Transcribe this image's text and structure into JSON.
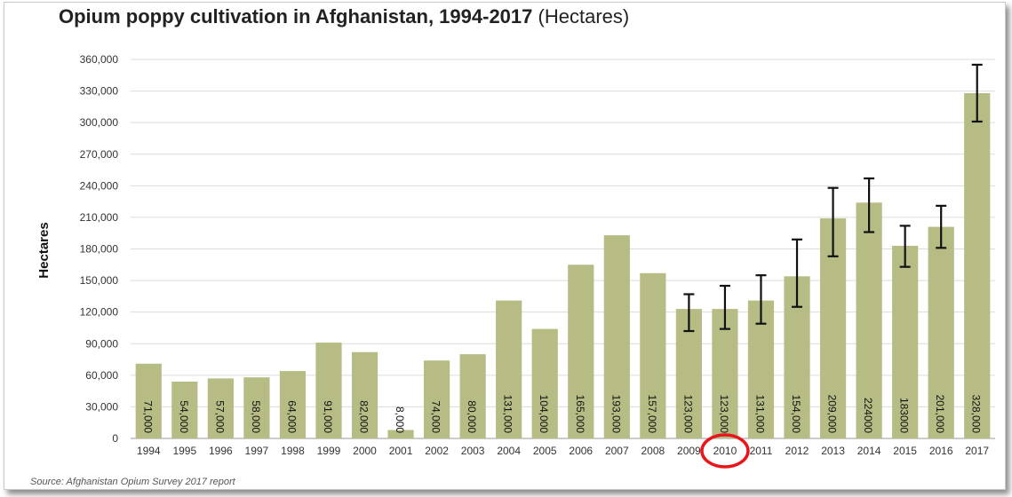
{
  "chart_data": {
    "type": "bar",
    "title": "Opium poppy cultivation in Afghanistan, 1994-2017",
    "title_unit": "(Hectares)",
    "ylabel": "Hectares",
    "xlabel": "",
    "ylim": [
      0,
      360000
    ],
    "yticks": [
      0,
      30000,
      60000,
      90000,
      120000,
      150000,
      180000,
      210000,
      240000,
      270000,
      300000,
      330000,
      360000
    ],
    "ytick_labels": [
      "0",
      "30,000",
      "60,000",
      "90,000",
      "120,000",
      "150,000",
      "180,000",
      "210,000",
      "240,000",
      "270,000",
      "300,000",
      "330,000",
      "360,000"
    ],
    "grid": true,
    "bar_color": "#b6bc84",
    "categories": [
      "1994",
      "1995",
      "1996",
      "1997",
      "1998",
      "1999",
      "2000",
      "2001",
      "2002",
      "2003",
      "2004",
      "2005",
      "2006",
      "2007",
      "2008",
      "2009",
      "2010",
      "2011",
      "2012",
      "2013",
      "2014",
      "2015",
      "2016",
      "2017"
    ],
    "values": [
      71000,
      54000,
      57000,
      58000,
      64000,
      91000,
      82000,
      8000,
      74000,
      80000,
      131000,
      104000,
      165000,
      193000,
      157000,
      123000,
      123000,
      131000,
      154000,
      209000,
      224000,
      183000,
      201000,
      328000
    ],
    "data_labels": [
      "71,000",
      "54,000",
      "57,000",
      "58,000",
      "64,000",
      "91,000",
      "82,000",
      "8,000",
      "74,000",
      "80,000",
      "131,000",
      "104,000",
      "165,000",
      "193,000",
      "157,000",
      "123,000",
      "123,000",
      "131,000",
      "154,000",
      "209,000",
      "224000",
      "183000",
      "201,000",
      "328,000"
    ],
    "error_bars": [
      {
        "category": "2009",
        "low": 102000,
        "high": 137000
      },
      {
        "category": "2010",
        "low": 104000,
        "high": 145000
      },
      {
        "category": "2011",
        "low": 109000,
        "high": 155000
      },
      {
        "category": "2012",
        "low": 125000,
        "high": 189000
      },
      {
        "category": "2013",
        "low": 173000,
        "high": 238000
      },
      {
        "category": "2014",
        "low": 196000,
        "high": 247000
      },
      {
        "category": "2015",
        "low": 163000,
        "high": 202000
      },
      {
        "category": "2016",
        "low": 181000,
        "high": 221000
      },
      {
        "category": "2017",
        "low": 301000,
        "high": 355000
      }
    ],
    "highlight": {
      "category": "2010",
      "color": "#e8161b",
      "shape": "circle"
    },
    "source": "Source: Afghanistan Opium Survey 2017 report"
  }
}
